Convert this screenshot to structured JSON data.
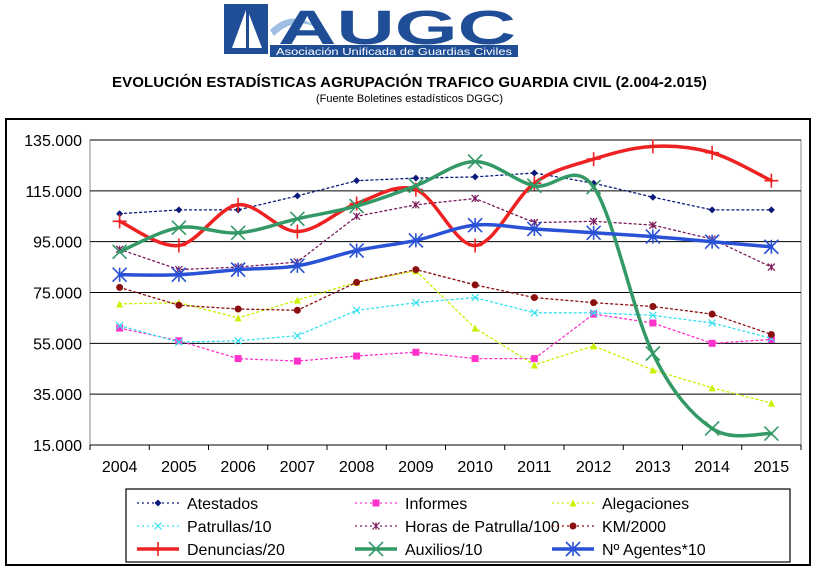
{
  "logo": {
    "text": "AUGC",
    "tagline": "Asociación Unificada de Guardias Civiles",
    "colors": {
      "primary": "#1f4e96",
      "light": "#9fbfe3",
      "text": "#ffffff"
    }
  },
  "chart_data": {
    "type": "line",
    "title": "EVOLUCIÓN ESTADÍSTICAS AGRUPACIÓN TRAFICO GUARDIA CIVIL (2.004-2.015)",
    "subtitle": "(Fuente Boletines estadísticos DGGC)",
    "xlabel": "",
    "ylabel": "",
    "categories": [
      "2004",
      "2005",
      "2006",
      "2007",
      "2008",
      "2009",
      "2010",
      "2011",
      "2012",
      "2013",
      "2014",
      "2015"
    ],
    "ylim": [
      15000,
      135000
    ],
    "yticks": [
      "15.000",
      "35.000",
      "55.000",
      "75.000",
      "95.000",
      "115.000",
      "135.000"
    ],
    "ytick_values": [
      15000,
      35000,
      55000,
      75000,
      95000,
      115000,
      135000
    ],
    "grid": true,
    "legend_position": "bottom",
    "series": [
      {
        "name": "Atestados",
        "color": "#0b1a7a",
        "style": "dotted",
        "marker": "diamond",
        "smooth": false,
        "values": [
          106000,
          107500,
          107500,
          113000,
          119000,
          120000,
          120500,
          122000,
          118000,
          112500,
          107500,
          107500
        ]
      },
      {
        "name": "Informes",
        "color": "#ff33cc",
        "style": "dotted",
        "marker": "square",
        "smooth": false,
        "values": [
          61000,
          56000,
          49000,
          48000,
          50000,
          51500,
          49000,
          49000,
          66500,
          63000,
          55000,
          56500
        ]
      },
      {
        "name": "Alegaciones",
        "color": "#ccf000",
        "style": "dotted",
        "marker": "triangle",
        "smooth": false,
        "values": [
          70500,
          71000,
          65000,
          72000,
          79000,
          83500,
          61000,
          46500,
          54000,
          44500,
          37500,
          31500
        ]
      },
      {
        "name": "Patrullas/10",
        "color": "#33e0f0",
        "style": "dotted",
        "marker": "x",
        "smooth": false,
        "values": [
          62000,
          55500,
          56000,
          58000,
          68000,
          71000,
          73000,
          67000,
          67000,
          66000,
          63000,
          57000
        ]
      },
      {
        "name": "Horas de Patrulla/100",
        "color": "#7a1a5c",
        "style": "dotted",
        "marker": "star",
        "smooth": false,
        "values": [
          92000,
          84000,
          85000,
          87000,
          105000,
          109500,
          112000,
          102500,
          103000,
          101500,
          96000,
          85000
        ]
      },
      {
        "name": "KM/2000",
        "color": "#8b0f0f",
        "style": "dotted",
        "marker": "circle",
        "smooth": false,
        "values": [
          77000,
          70000,
          68500,
          68000,
          79000,
          84000,
          78000,
          73000,
          71000,
          69500,
          66500,
          58500
        ]
      },
      {
        "name": "Denuncias/20",
        "color": "#ee2222",
        "style": "solid",
        "marker": "plus",
        "smooth": true,
        "values": [
          103000,
          93500,
          109500,
          99000,
          110000,
          115500,
          93500,
          118000,
          127500,
          132500,
          130000,
          119000
        ]
      },
      {
        "name": "Auxilios/10",
        "color": "#339966",
        "style": "solid",
        "marker": "x",
        "smooth": true,
        "values": [
          91000,
          100500,
          98500,
          104000,
          109000,
          117000,
          126500,
          117000,
          116500,
          51000,
          21500,
          19500
        ]
      },
      {
        "name": "Nº Agentes*10",
        "color": "#2a52d6",
        "style": "solid",
        "marker": "star",
        "smooth": true,
        "values": [
          82000,
          82000,
          84000,
          85500,
          91500,
          95500,
          101500,
          100000,
          98500,
          97000,
          95000,
          93000
        ]
      }
    ]
  }
}
